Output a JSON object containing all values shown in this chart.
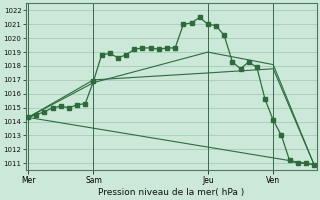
{
  "title": "Pression niveau de la mer( hPa )",
  "background_color": "#cce8d8",
  "grid_color": "#9dc8b0",
  "line_color": "#2d6b3c",
  "ylim": [
    1010.5,
    1022.5
  ],
  "yticks": [
    1011,
    1012,
    1013,
    1014,
    1015,
    1016,
    1017,
    1018,
    1019,
    1020,
    1021,
    1022
  ],
  "day_labels": [
    "Mer",
    "Sam",
    "Jeu",
    "Ven"
  ],
  "day_positions": [
    0,
    8,
    22,
    30
  ],
  "x_total": 36,
  "xlim": [
    -0.3,
    35.3
  ],
  "main_line": {
    "x": [
      0,
      1,
      2,
      3,
      4,
      5,
      6,
      7,
      8,
      9,
      10,
      11,
      12,
      13,
      14,
      15,
      16,
      17,
      18,
      19,
      20,
      21,
      22,
      23,
      24,
      25,
      26,
      27,
      28,
      29,
      30,
      31,
      32,
      33,
      34,
      35
    ],
    "y": [
      1014.3,
      1014.5,
      1014.7,
      1015.0,
      1015.1,
      1015.0,
      1015.2,
      1015.3,
      1016.9,
      1018.8,
      1018.9,
      1018.6,
      1018.8,
      1019.2,
      1019.3,
      1019.3,
      1019.2,
      1019.3,
      1019.3,
      1021.0,
      1021.1,
      1021.5,
      1021.0,
      1020.9,
      1020.2,
      1018.3,
      1017.8,
      1018.3,
      1017.9,
      1015.6,
      1014.1,
      1013.0,
      1011.2,
      1011.0,
      1011.0,
      1010.9
    ]
  },
  "straight_lines": [
    {
      "x": [
        0,
        35
      ],
      "y": [
        1014.3,
        1010.9
      ]
    },
    {
      "x": [
        0,
        8,
        22,
        30,
        35
      ],
      "y": [
        1014.3,
        1016.8,
        1019.0,
        1018.1,
        1010.9
      ]
    },
    {
      "x": [
        0,
        8,
        22,
        30,
        35
      ],
      "y": [
        1014.3,
        1017.0,
        1017.5,
        1017.8,
        1010.9
      ]
    }
  ]
}
